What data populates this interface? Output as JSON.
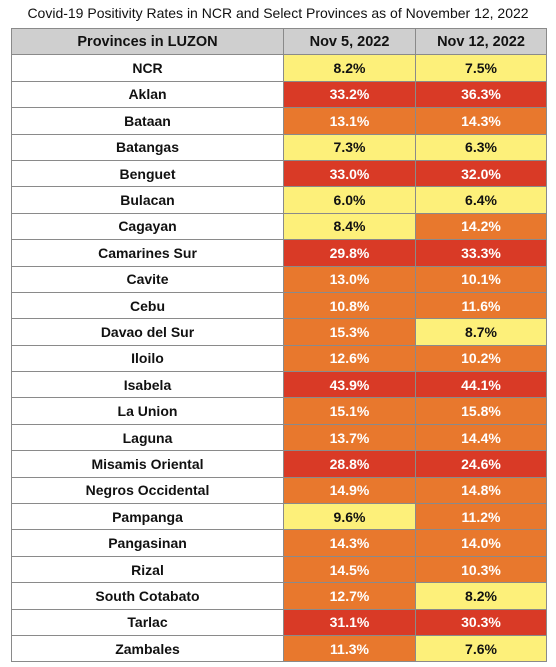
{
  "title": "Covid-19 Positivity Rates in NCR and Select Provinces as of November 12, 2022",
  "colors": {
    "low": "#fdf07a",
    "moderate": "#e8782d",
    "high": "#d93a26",
    "header": "#cfcfcf"
  },
  "chart_data": {
    "type": "table",
    "columns": [
      "Provinces in LUZON",
      "Nov 5, 2022",
      "Nov 12, 2022"
    ],
    "rows": [
      {
        "province": "NCR",
        "nov5": "8.2%",
        "nov12": "7.5%",
        "nov5_level": "low",
        "nov12_level": "low"
      },
      {
        "province": "Aklan",
        "nov5": "33.2%",
        "nov12": "36.3%",
        "nov5_level": "high",
        "nov12_level": "high"
      },
      {
        "province": "Bataan",
        "nov5": "13.1%",
        "nov12": "14.3%",
        "nov5_level": "moderate",
        "nov12_level": "moderate"
      },
      {
        "province": "Batangas",
        "nov5": "7.3%",
        "nov12": "6.3%",
        "nov5_level": "low",
        "nov12_level": "low"
      },
      {
        "province": "Benguet",
        "nov5": "33.0%",
        "nov12": "32.0%",
        "nov5_level": "high",
        "nov12_level": "high"
      },
      {
        "province": "Bulacan",
        "nov5": "6.0%",
        "nov12": "6.4%",
        "nov5_level": "low",
        "nov12_level": "low"
      },
      {
        "province": "Cagayan",
        "nov5": "8.4%",
        "nov12": "14.2%",
        "nov5_level": "low",
        "nov12_level": "moderate"
      },
      {
        "province": "Camarines Sur",
        "nov5": "29.8%",
        "nov12": "33.3%",
        "nov5_level": "high",
        "nov12_level": "high"
      },
      {
        "province": "Cavite",
        "nov5": "13.0%",
        "nov12": "10.1%",
        "nov5_level": "moderate",
        "nov12_level": "moderate"
      },
      {
        "province": "Cebu",
        "nov5": "10.8%",
        "nov12": "11.6%",
        "nov5_level": "moderate",
        "nov12_level": "moderate"
      },
      {
        "province": "Davao del Sur",
        "nov5": "15.3%",
        "nov12": "8.7%",
        "nov5_level": "moderate",
        "nov12_level": "low"
      },
      {
        "province": "Iloilo",
        "nov5": "12.6%",
        "nov12": "10.2%",
        "nov5_level": "moderate",
        "nov12_level": "moderate"
      },
      {
        "province": "Isabela",
        "nov5": "43.9%",
        "nov12": "44.1%",
        "nov5_level": "high",
        "nov12_level": "high"
      },
      {
        "province": "La Union",
        "nov5": "15.1%",
        "nov12": "15.8%",
        "nov5_level": "moderate",
        "nov12_level": "moderate"
      },
      {
        "province": "Laguna",
        "nov5": "13.7%",
        "nov12": "14.4%",
        "nov5_level": "moderate",
        "nov12_level": "moderate"
      },
      {
        "province": "Misamis Oriental",
        "nov5": "28.8%",
        "nov12": "24.6%",
        "nov5_level": "high",
        "nov12_level": "high"
      },
      {
        "province": "Negros Occidental",
        "nov5": "14.9%",
        "nov12": "14.8%",
        "nov5_level": "moderate",
        "nov12_level": "moderate"
      },
      {
        "province": "Pampanga",
        "nov5": "9.6%",
        "nov12": "11.2%",
        "nov5_level": "low",
        "nov12_level": "moderate"
      },
      {
        "province": "Pangasinan",
        "nov5": "14.3%",
        "nov12": "14.0%",
        "nov5_level": "moderate",
        "nov12_level": "moderate"
      },
      {
        "province": "Rizal",
        "nov5": "14.5%",
        "nov12": "10.3%",
        "nov5_level": "moderate",
        "nov12_level": "moderate"
      },
      {
        "province": "South Cotabato",
        "nov5": "12.7%",
        "nov12": "8.2%",
        "nov5_level": "moderate",
        "nov12_level": "low"
      },
      {
        "province": "Tarlac",
        "nov5": "31.1%",
        "nov12": "30.3%",
        "nov5_level": "high",
        "nov12_level": "high"
      },
      {
        "province": "Zambales",
        "nov5": "11.3%",
        "nov12": "7.6%",
        "nov5_level": "moderate",
        "nov12_level": "low"
      }
    ]
  }
}
